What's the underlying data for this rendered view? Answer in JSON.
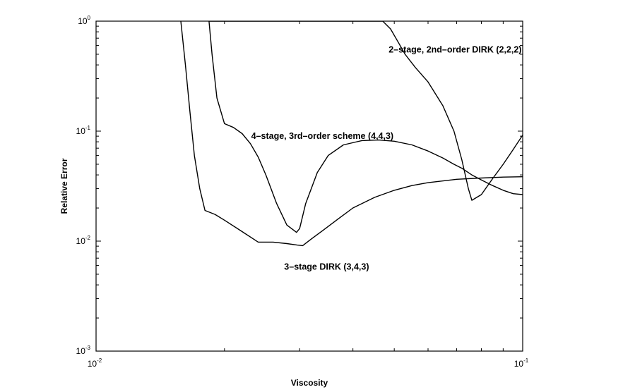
{
  "chart_data": {
    "type": "line",
    "title": "",
    "xlabel": "Viscosity",
    "ylabel": "Relative Error",
    "xscale": "log",
    "yscale": "log",
    "xlim": [
      0.01,
      0.1
    ],
    "ylim": [
      0.001,
      1
    ],
    "grid": false,
    "x_ticks": [
      {
        "base": "10",
        "exp": "-2"
      },
      {
        "base": "10",
        "exp": "-1"
      }
    ],
    "y_ticks": [
      {
        "base": "10",
        "exp": "-3"
      },
      {
        "base": "10",
        "exp": "-2"
      },
      {
        "base": "10",
        "exp": "-1"
      },
      {
        "base": "10",
        "exp": "0"
      }
    ],
    "series": [
      {
        "x": [
          0.0184,
          0.0187,
          0.0192,
          0.02,
          0.021,
          0.022,
          0.023,
          0.024,
          0.025,
          0.0265,
          0.028,
          0.0295,
          0.03,
          0.031,
          0.033,
          0.035,
          0.038,
          0.042,
          0.046,
          0.05,
          0.055,
          0.06,
          0.065,
          0.069,
          0.072,
          0.0746,
          0.076,
          0.08,
          0.085,
          0.09,
          0.095,
          0.1
        ],
        "y": [
          1.0,
          0.5,
          0.2,
          0.117,
          0.108,
          0.095,
          0.077,
          0.058,
          0.04,
          0.022,
          0.014,
          0.012,
          0.013,
          0.022,
          0.042,
          0.06,
          0.075,
          0.082,
          0.083,
          0.081,
          0.075,
          0.066,
          0.057,
          0.05,
          0.046,
          0.042,
          0.04,
          0.036,
          0.032,
          0.029,
          0.027,
          0.0265
        ]
      },
      {
        "x": [
          0.0158,
          0.0162,
          0.0166,
          0.017,
          0.0175,
          0.018,
          0.019,
          0.02,
          0.022,
          0.024,
          0.026,
          0.028,
          0.0296,
          0.0305,
          0.032,
          0.034,
          0.037,
          0.04,
          0.045,
          0.05,
          0.055,
          0.06,
          0.07,
          0.08,
          0.09,
          0.1
        ],
        "y": [
          1.0,
          0.4,
          0.15,
          0.06,
          0.03,
          0.019,
          0.0175,
          0.0155,
          0.0122,
          0.0098,
          0.0098,
          0.0095,
          0.0092,
          0.0091,
          0.0105,
          0.0125,
          0.016,
          0.02,
          0.025,
          0.029,
          0.032,
          0.034,
          0.0365,
          0.0375,
          0.0382,
          0.0385
        ]
      },
      {
        "x": [
          0.0184,
          0.02,
          0.03,
          0.04,
          0.047,
          0.049,
          0.051,
          0.053,
          0.056,
          0.06,
          0.065,
          0.069,
          0.072,
          0.0746,
          0.076,
          0.08,
          0.085,
          0.09,
          0.095,
          0.1
        ],
        "y": [
          1.0,
          1.0,
          1.0,
          1.0,
          1.0,
          0.85,
          0.65,
          0.5,
          0.38,
          0.28,
          0.17,
          0.1,
          0.055,
          0.03,
          0.0235,
          0.0265,
          0.037,
          0.05,
          0.068,
          0.092
        ]
      }
    ],
    "annotations": [
      {
        "text": "2–stage, 2nd–order DIRK (2,2,2)",
        "x": 0.0485,
        "y": 0.52
      },
      {
        "text": "4–stage, 3rd–order scheme (4,4,3)",
        "x": 0.0231,
        "y": 0.085
      },
      {
        "text": "3–stage DIRK (3,4,3)",
        "x": 0.0276,
        "y": 0.0055
      }
    ]
  }
}
